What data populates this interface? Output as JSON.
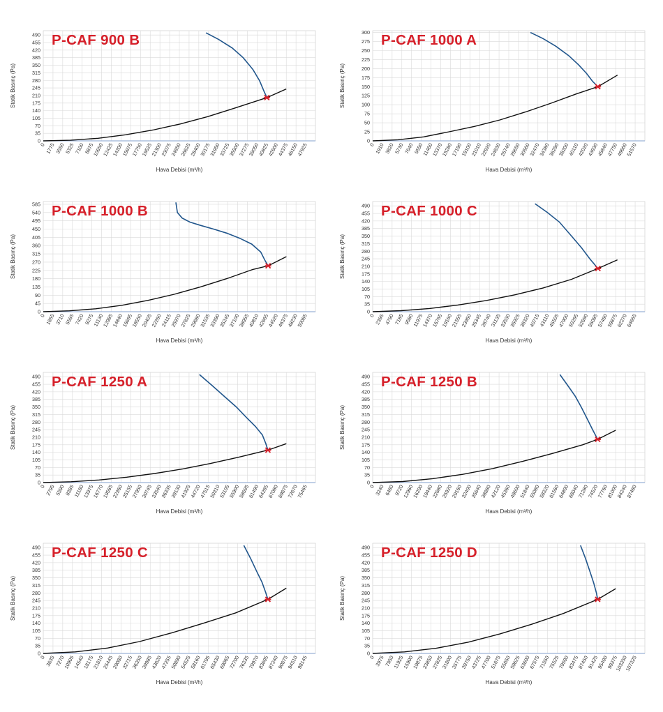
{
  "ylabel": "Statik Basınç (Pa)",
  "xlabel": "Hava Debisi (m³/h)",
  "colors": {
    "title": "#d6202a",
    "fan_curve": "#21568c",
    "system_curve": "#111111",
    "marker": "#d6202a",
    "x_axis": "#9bb2d8",
    "grid": "#d9d9d9"
  },
  "chart_data": [
    {
      "type": "line",
      "title": "P-CAF 900 B",
      "xlabel": "Hava Debisi (m³/h)",
      "ylabel": "Statik Basınç (Pa)",
      "xticks": [
        0,
        1775,
        3550,
        5325,
        7100,
        8875,
        10650,
        12425,
        14200,
        15975,
        17750,
        19525,
        21300,
        23075,
        24850,
        26625,
        28400,
        30175,
        31950,
        33725,
        35500,
        37275,
        39050,
        40825,
        42600,
        44375,
        46150,
        47925
      ],
      "yticks": [
        0,
        35,
        70,
        105,
        140,
        175,
        210,
        245,
        280,
        315,
        350,
        385,
        420,
        455,
        490
      ],
      "ylim": [
        0,
        510
      ],
      "grid": true,
      "series": [
        {
          "x": [
            0,
            5000,
            10000,
            15000,
            20000,
            25000,
            30000,
            35000,
            40825,
            44375
          ],
          "y": [
            0,
            3,
            12,
            28,
            50,
            78,
            112,
            152,
            200,
            240
          ]
        },
        {
          "x": [
            29700,
            32000,
            34500,
            36500,
            38300,
            39500,
            40300,
            40825
          ],
          "y": [
            500,
            470,
            430,
            385,
            330,
            278,
            230,
            200
          ]
        }
      ],
      "duty_point": {
        "x": 40825,
        "y": 200
      }
    },
    {
      "type": "line",
      "title": "P-CAF 1000 A",
      "xlabel": "Hava Debisi (m³/h)",
      "ylabel": "Statik Basınç (Pa)",
      "xticks": [
        0,
        1910,
        3820,
        5730,
        7640,
        9550,
        11460,
        13370,
        15280,
        17190,
        19100,
        21010,
        22920,
        24830,
        26740,
        28650,
        30560,
        32470,
        34380,
        36290,
        38200,
        40110,
        42020,
        43930,
        45840,
        47750,
        49660,
        51570
      ],
      "yticks": [
        0,
        25,
        50,
        75,
        100,
        125,
        150,
        175,
        200,
        225,
        250,
        275,
        300
      ],
      "ylim": [
        0,
        305
      ],
      "grid": true,
      "series": [
        {
          "x": [
            0,
            5000,
            10000,
            15000,
            20000,
            25000,
            30000,
            35000,
            40000,
            44250,
            48100
          ],
          "y": [
            0,
            3,
            11,
            25,
            40,
            58,
            80,
            104,
            130,
            150,
            182
          ]
        },
        {
          "x": [
            31000,
            33500,
            36000,
            38500,
            40500,
            42000,
            43200,
            44250
          ],
          "y": [
            300,
            283,
            262,
            236,
            210,
            187,
            165,
            150
          ]
        }
      ],
      "duty_point": {
        "x": 44250,
        "y": 150
      }
    },
    {
      "type": "line",
      "title": "P-CAF 1000 B",
      "xlabel": "Hava Debisi (m³/h)",
      "ylabel": "Statik Basınç (Pa)",
      "xticks": [
        0,
        1855,
        3710,
        5565,
        7420,
        9275,
        11130,
        12985,
        14840,
        16695,
        18550,
        20405,
        22260,
        24115,
        25970,
        27825,
        29680,
        31535,
        33390,
        35245,
        37100,
        38955,
        40810,
        42665,
        44520,
        46375,
        48230,
        50085
      ],
      "yticks": [
        0,
        45,
        90,
        135,
        180,
        225,
        270,
        315,
        360,
        405,
        450,
        495,
        540,
        585
      ],
      "ylim": [
        0,
        600
      ],
      "grid": true,
      "series": [
        {
          "x": [
            0,
            5000,
            10000,
            15000,
            20000,
            25000,
            30000,
            35000,
            40000,
            42900,
            46400
          ],
          "y": [
            0,
            5,
            16,
            35,
            62,
            95,
            135,
            180,
            230,
            250,
            300
          ]
        },
        {
          "x": [
            25300,
            25600,
            26500,
            28000,
            30000,
            32500,
            35000,
            37500,
            39800,
            41500,
            42300,
            42900
          ],
          "y": [
            595,
            540,
            510,
            488,
            470,
            450,
            428,
            400,
            368,
            325,
            280,
            250
          ]
        }
      ],
      "duty_point": {
        "x": 42900,
        "y": 250
      }
    },
    {
      "type": "line",
      "title": "P-CAF 1000 C",
      "xlabel": "Hava Debisi (m³/h)",
      "ylabel": "Statik Basınç (Pa)",
      "xticks": [
        0,
        2395,
        4790,
        7185,
        9580,
        11975,
        14370,
        16765,
        19160,
        21555,
        23950,
        26345,
        28740,
        31135,
        33530,
        35925,
        38320,
        40715,
        43110,
        45505,
        47900,
        50295,
        52690,
        55085,
        57480,
        59875,
        62270,
        64665
      ],
      "yticks": [
        0,
        35,
        70,
        105,
        140,
        175,
        210,
        245,
        280,
        315,
        350,
        385,
        420,
        455,
        490
      ],
      "ylim": [
        0,
        510
      ],
      "grid": true,
      "series": [
        {
          "x": [
            0,
            7000,
            14000,
            21000,
            28000,
            35000,
            42000,
            49000,
            55500,
            60300
          ],
          "y": [
            0,
            5,
            15,
            31,
            52,
            78,
            110,
            150,
            200,
            240
          ]
        },
        {
          "x": [
            40000,
            43000,
            46000,
            49000,
            51500,
            53500,
            55500
          ],
          "y": [
            500,
            460,
            415,
            350,
            295,
            245,
            200
          ]
        }
      ],
      "duty_point": {
        "x": 55500,
        "y": 200
      }
    },
    {
      "type": "line",
      "title": "P-CAF 1250 A",
      "xlabel": "Hava Debisi (m³/h)",
      "ylabel": "Statik Basınç (Pa)",
      "xticks": [
        0,
        2795,
        5590,
        8385,
        11180,
        13975,
        16770,
        19565,
        22360,
        25155,
        27950,
        30745,
        33540,
        36335,
        39130,
        41925,
        44720,
        47515,
        50310,
        53105,
        55900,
        58695,
        61490,
        64285,
        67080,
        69875,
        72670,
        75465
      ],
      "yticks": [
        0,
        35,
        70,
        105,
        140,
        175,
        210,
        245,
        280,
        315,
        350,
        385,
        420,
        455,
        490
      ],
      "ylim": [
        0,
        510
      ],
      "grid": true,
      "series": [
        {
          "x": [
            0,
            8000,
            16000,
            24000,
            32000,
            40000,
            48000,
            56000,
            62000,
            64600,
            69900
          ],
          "y": [
            0,
            4,
            12,
            25,
            42,
            63,
            88,
            117,
            140,
            150,
            180
          ]
        },
        {
          "x": [
            44900,
            48500,
            52000,
            55500,
            58500,
            61000,
            63000,
            64000,
            64600
          ],
          "y": [
            500,
            450,
            400,
            350,
            300,
            260,
            220,
            180,
            150
          ]
        }
      ],
      "duty_point": {
        "x": 64600,
        "y": 150
      }
    },
    {
      "type": "line",
      "title": "P-CAF 1250 B",
      "xlabel": "Hava Debisi (m³/h)",
      "ylabel": "Statik Basınç (Pa)",
      "xticks": [
        0,
        3240,
        6480,
        9720,
        12960,
        16200,
        19440,
        22680,
        25920,
        29160,
        32400,
        35640,
        38880,
        42120,
        45360,
        48600,
        51840,
        55080,
        58320,
        61560,
        64800,
        68040,
        71280,
        74520,
        77760,
        81000,
        84240,
        87480
      ],
      "yticks": [
        0,
        35,
        70,
        105,
        140,
        175,
        210,
        245,
        280,
        315,
        350,
        385,
        420,
        455,
        490
      ],
      "ylim": [
        0,
        510
      ],
      "grid": true,
      "series": [
        {
          "x": [
            0,
            10000,
            20000,
            30000,
            40000,
            50000,
            60000,
            70000,
            75000,
            81000
          ],
          "y": [
            0,
            5,
            18,
            38,
            65,
            98,
            135,
            175,
            200,
            242
          ]
        },
        {
          "x": [
            62400,
            65000,
            67500,
            69500,
            71500,
            73300,
            75000
          ],
          "y": [
            500,
            450,
            400,
            350,
            295,
            245,
            200
          ]
        }
      ],
      "duty_point": {
        "x": 75000,
        "y": 200
      }
    },
    {
      "type": "line",
      "title": "P-CAF 1250 C",
      "xlabel": "Hava Debisi (m³/h)",
      "ylabel": "Statik Basınç (Pa)",
      "xticks": [
        0,
        3635,
        7270,
        10905,
        14540,
        18175,
        21810,
        25445,
        29080,
        32715,
        36350,
        39985,
        43620,
        47255,
        50890,
        54525,
        58160,
        61795,
        65430,
        69065,
        72700,
        76335,
        79970,
        83605,
        87240,
        90875,
        94510,
        98145
      ],
      "yticks": [
        0,
        35,
        70,
        105,
        140,
        175,
        210,
        245,
        280,
        315,
        350,
        385,
        420,
        455,
        490
      ],
      "ylim": [
        0,
        510
      ],
      "grid": true,
      "series": [
        {
          "x": [
            0,
            12000,
            24000,
            36000,
            48000,
            60000,
            72000,
            84000,
            90900
          ],
          "y": [
            0,
            7,
            25,
            55,
            95,
            140,
            188,
            250,
            302
          ]
        },
        {
          "x": [
            75000,
            77500,
            79800,
            81800,
            83100,
            84000
          ],
          "y": [
            500,
            440,
            380,
            330,
            285,
            250
          ]
        }
      ],
      "duty_point": {
        "x": 84000,
        "y": 250
      }
    },
    {
      "type": "line",
      "title": "P-CAF 1250 D",
      "xlabel": "Hava Debisi (m³/h)",
      "ylabel": "Statik Basınç (Pa)",
      "xticks": [
        0,
        3975,
        7950,
        11925,
        15900,
        19875,
        23850,
        27825,
        31800,
        35775,
        39750,
        43725,
        47700,
        51675,
        55650,
        59625,
        63600,
        67575,
        71550,
        75525,
        79500,
        83475,
        87450,
        91425,
        95400,
        99375,
        103350,
        107325
      ],
      "yticks": [
        0,
        35,
        70,
        105,
        140,
        175,
        210,
        245,
        280,
        315,
        350,
        385,
        420,
        455,
        490
      ],
      "ylim": [
        0,
        510
      ],
      "grid": true,
      "series": [
        {
          "x": [
            0,
            13000,
            26000,
            39000,
            52000,
            65000,
            78000,
            92000,
            99400
          ],
          "y": [
            0,
            7,
            24,
            52,
            90,
            135,
            185,
            250,
            300
          ]
        },
        {
          "x": [
            85000,
            87000,
            88800,
            90400,
            91500,
            92000
          ],
          "y": [
            500,
            440,
            380,
            325,
            280,
            250
          ]
        }
      ],
      "duty_point": {
        "x": 92000,
        "y": 250
      }
    }
  ]
}
